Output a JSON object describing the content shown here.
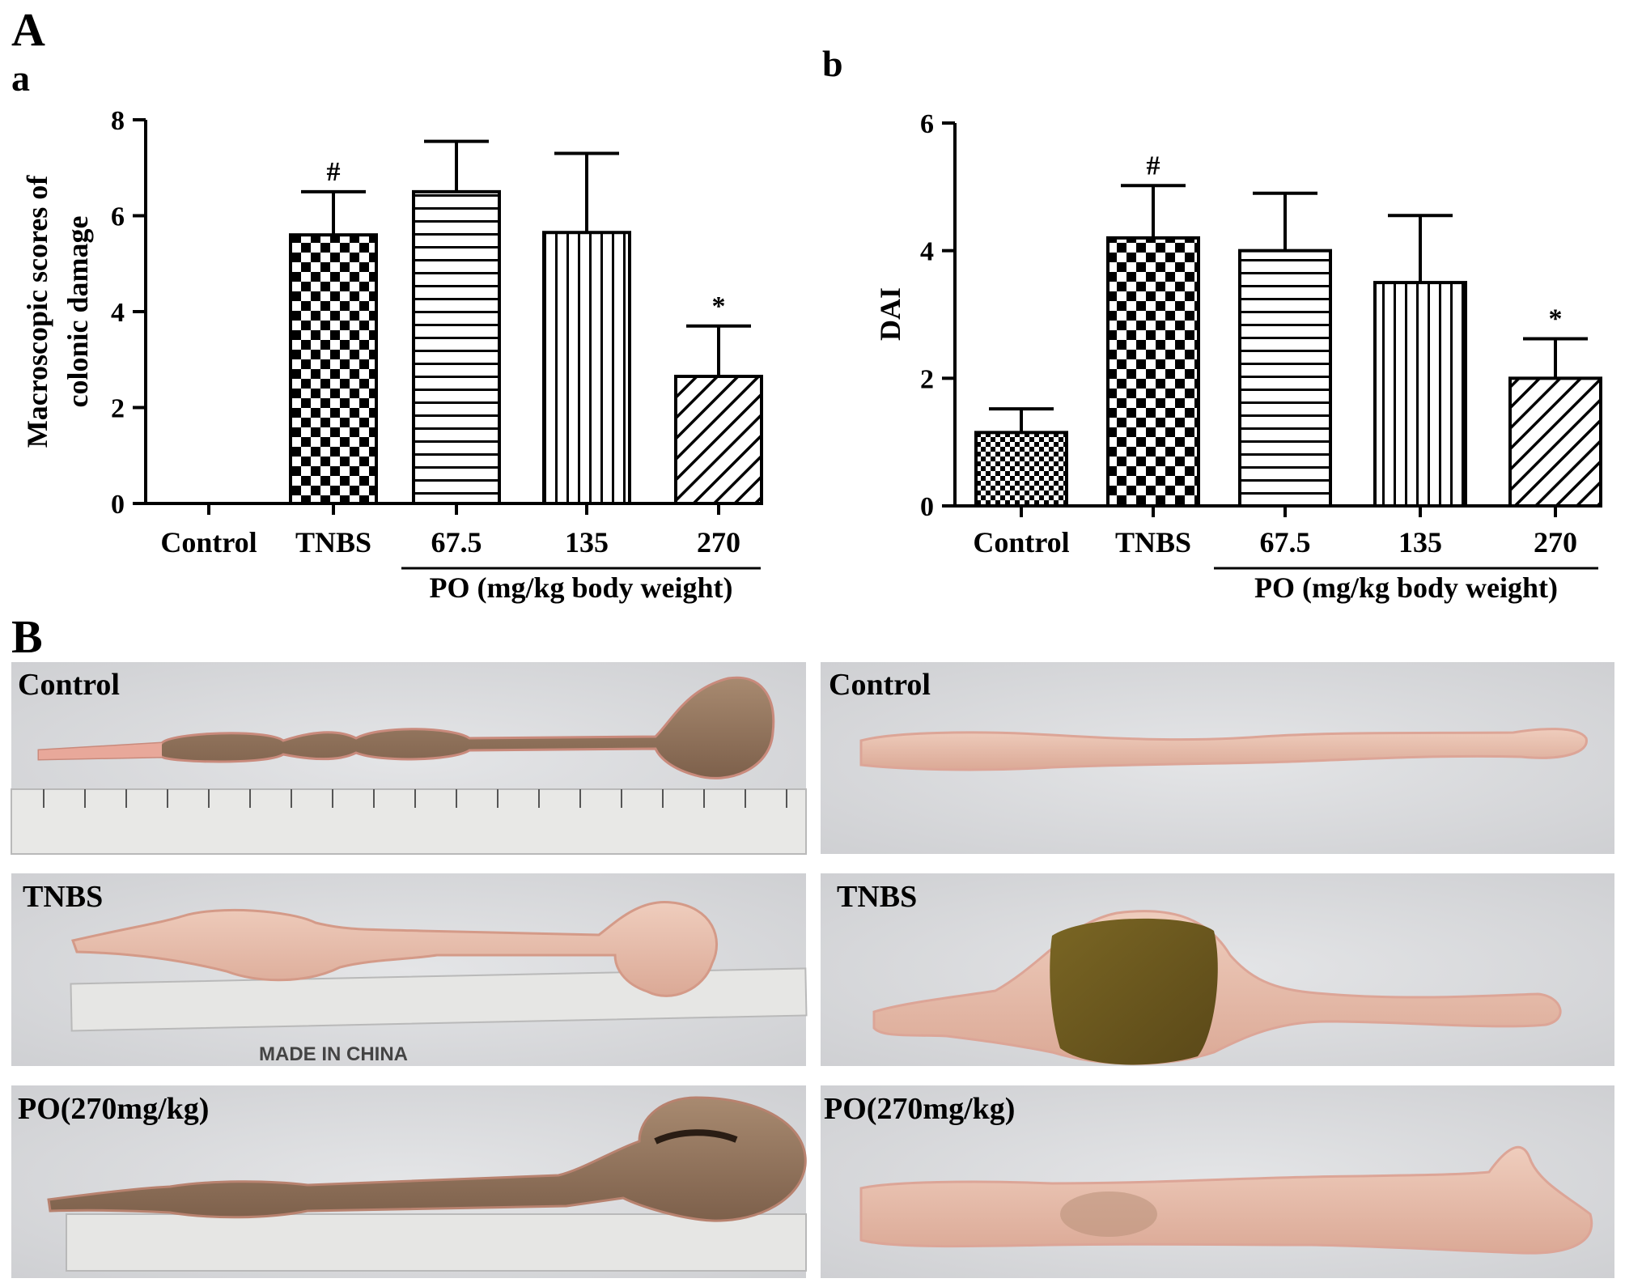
{
  "figure": {
    "panel_A_letter": "A",
    "panel_B_letter": "B"
  },
  "chart_data": [
    {
      "type": "bar",
      "panel_label": "a",
      "categories": [
        "Control",
        "TNBS",
        "67.5",
        "135",
        "270"
      ],
      "values": [
        0,
        5.6,
        6.5,
        5.65,
        2.65
      ],
      "errors": [
        0,
        0.9,
        1.05,
        1.65,
        1.05
      ],
      "patterns": [
        "checker-fine",
        "checker",
        "horizontal",
        "vertical",
        "diagonal"
      ],
      "significance": [
        "",
        "#",
        "",
        "",
        "*"
      ],
      "ylabel_lines": [
        "Macroscopic scores of",
        "colonic damage"
      ],
      "xlabel": "",
      "group_label": "PO (mg/kg body weight)",
      "group_categories": [
        "67.5",
        "135",
        "270"
      ],
      "ylim": [
        0,
        8
      ],
      "yticks": [
        0,
        2,
        4,
        6,
        8
      ],
      "grid": false
    },
    {
      "type": "bar",
      "panel_label": "b",
      "categories": [
        "Control",
        "TNBS",
        "67.5",
        "135",
        "270"
      ],
      "values": [
        1.15,
        4.2,
        4.0,
        3.5,
        2.0
      ],
      "errors": [
        0.37,
        0.82,
        0.9,
        1.05,
        0.62
      ],
      "patterns": [
        "checker-fine",
        "checker",
        "horizontal",
        "vertical",
        "diagonal"
      ],
      "significance": [
        "",
        "#",
        "",
        "",
        "*"
      ],
      "ylabel_lines": [
        "DAI"
      ],
      "xlabel": "",
      "group_label": "PO (mg/kg body weight)",
      "group_categories": [
        "67.5",
        "135",
        "270"
      ],
      "ylim": [
        0,
        6
      ],
      "yticks": [
        0,
        2,
        4,
        6
      ],
      "grid": false
    }
  ],
  "photos": {
    "left": [
      {
        "label": "Control",
        "ruler_text": ""
      },
      {
        "label": "TNBS",
        "ruler_text": "MADE IN CHINA"
      },
      {
        "label": "PO(270mg/kg)",
        "ruler_text": ""
      }
    ],
    "right": [
      {
        "label": "Control"
      },
      {
        "label": "TNBS"
      },
      {
        "label": "PO(270mg/kg)"
      }
    ]
  },
  "colors": {
    "bar_stroke": "#000000",
    "photo_background": "#d9dadc",
    "tissue_dark": "#8e6e58",
    "tissue_pink": "#e6b9a8",
    "ulcer": "#6c5a1e"
  }
}
